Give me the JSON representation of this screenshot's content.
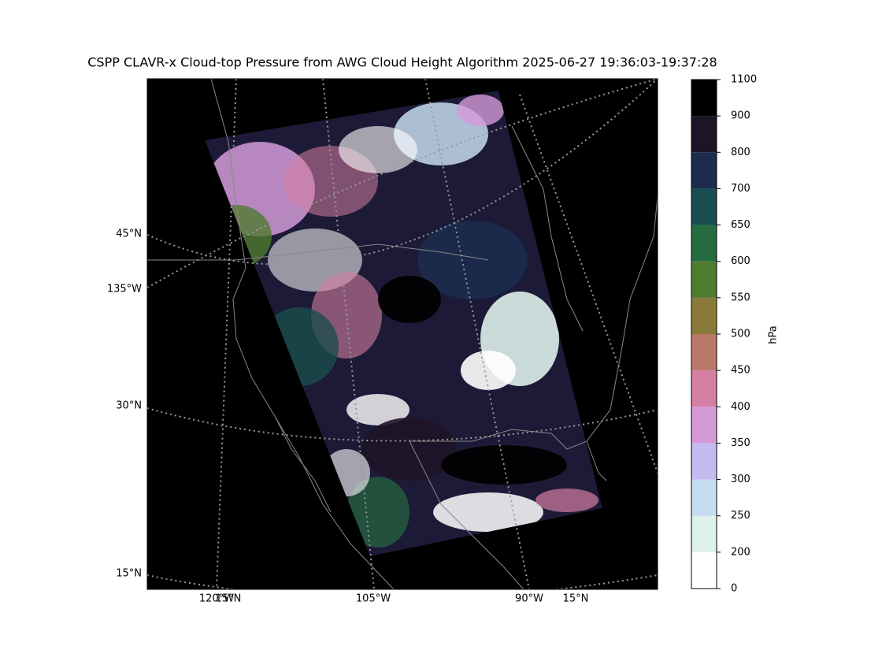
{
  "map": {
    "title": "CSPP CLAVR-x Cloud-top Pressure from AWG Cloud Height Algorithm 2025-06-27 19:36:03-19:37:28",
    "graticule_labels": [
      "45°N",
      "135°W",
      "30°N",
      "15°N",
      "120°W",
      "15°N",
      "105°W",
      "90°W",
      "15°N"
    ],
    "colorbar": {
      "label": "hPa",
      "ticks": [
        0,
        200,
        250,
        300,
        350,
        400,
        450,
        500,
        550,
        600,
        650,
        700,
        800,
        900,
        1100
      ],
      "colors": [
        "#ffffff",
        "#dff1ec",
        "#c6dcf0",
        "#c4baf0",
        "#d49ad8",
        "#d47fa2",
        "#ba7868",
        "#8a7a3a",
        "#4f7b30",
        "#256a40",
        "#1a4e4e",
        "#1c2b4e",
        "#1e1428",
        "#000000"
      ]
    }
  }
}
